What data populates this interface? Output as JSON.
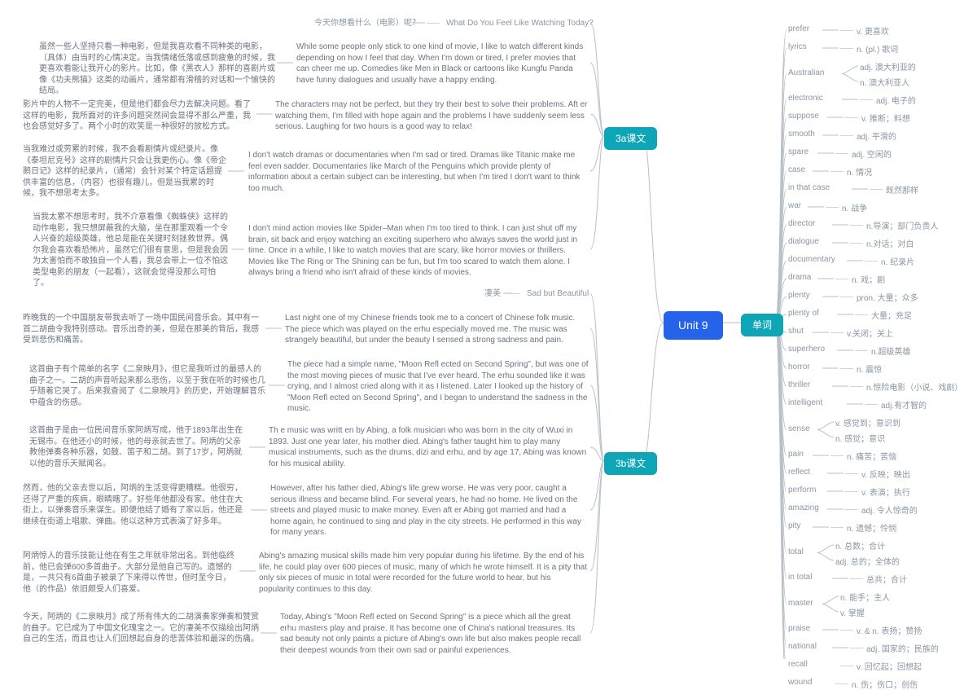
{
  "hub": "Unit 9",
  "sections": {
    "s3a": "3a课文",
    "s3b": "3b课文",
    "vocab": "单词"
  },
  "s3a_title_cn": "今天你想看什么（电影）呢？",
  "s3a_title_en": "What Do You Feel Like Watching Today?",
  "s3a_p1_cn": "虽然一些人坚持只看一种电影，但是我喜欢看不同种类的电影，（具体）由当时的心情决定。当我情绪低落或感到疲惫的时候，我更喜欢看能让我开心的影片。比如，像《黑衣人》那样的喜剧片或像《功夫熊猫》这类的动画片，通常都有滑稽的对话和一个愉快的结局。",
  "s3a_p1_en": "While some people only stick to one kind of movie, I like to watch different kinds depending on how I feel that day. When I'm down or tired, I prefer movies that can cheer me up. Comedies like Men in Black or cartoons like Kungfu Panda have funny dialogues and usually have a happy ending.",
  "s3a_p2_cn": "影片中的人物不一定完美，但是他们都会尽力去解决问题。看了这样的电影，我所面对的许多问题突然间会显得不那么严重，我也会感觉好多了。两个小时的欢笑是一种很好的放松方式。",
  "s3a_p2_en": "The characters may not be perfect, but they try their best to solve their problems. Aft er watching them, I'm filled with hope again and the problems I have suddenly seem less serious. Laughing for two hours is a good way to relax!",
  "s3a_p3_cn": "当我难过或劳累的时候，我不会看剧情片或纪录片。像《泰坦尼克号》这样的剧情片只会让我更伤心。像《帝企鹅日记》这样的纪录片，（通常）会针对某个特定话题提供丰富的信息，（内容）也很有趣儿，但是当我累的时候，我不想思考太多。",
  "s3a_p3_en": "I don't watch dramas or documentaries when I'm sad or tired. Dramas like Titanic make me feel even sadder. Documentaries like March of the Penguins which provide plenty of information about a certain subject can be interesting, but when I'm tired I don't want to think too much.",
  "s3a_p4_cn": "当我太累不想思考时，我不介意看像《蜘蛛侠》这样的动作电影，我只想屏蔽我的大脑，坐在那里观看一个令人兴奋的超级英雄，他总是能在关键时刻拯救世界。偶尔我会喜欢看恐怖片，虽然它们很有意思，但是我会因为太害怕而不敢独自一个人看，我总会带上一位不怕这类型电影的朋友（一起看），这就会觉得没那么可怕了。",
  "s3a_p4_en": "I don't mind action movies like Spider–Man when I'm too tired to think. I can just shut off my brain, sit back and enjoy watching an exciting superhero who always saves the world just in time. Once in a while, I like to watch movies that are scary, like horror movies or thrillers. Movies like The Ring or The Shining can be fun, but I'm too scared to watch them alone. I always bring a friend who isn't afraid of these kinds of movies.",
  "s3b_title_cn": "凄美",
  "s3b_title_en": "Sad but Beautiful",
  "s3b_p1_cn": "昨晚我的一个中国朋友带我去听了一场中国民间音乐会。其中有一首二胡曲令我特别感动。音乐出奇的美，但是在那美的背后，我感受到悲伤和痛苦。",
  "s3b_p1_en": "Last night one of my Chinese friends took me to a concert of Chinese folk music. The piece which was played on the erhu especially moved me. The music was strangely beautiful, but under the beauty I sensed a strong sadness and pain.",
  "s3b_p2_cn": "这首曲子有个简单的名字《二泉映月》，但它是我听过的最感人的曲子之一。二胡的声音听起来那么悲伤，以至于我在听的时候也几乎随着它哭了。后来我查阅了《二泉映月》的历史，开始理解音乐中蕴含的伤感。",
  "s3b_p2_en": "The piece had a simple name, \"Moon Refl ected on Second Spring\", but was one of the most moving pieces of music that I've ever heard. The erhu sounded like it was crying, and I almost cried along with it as I listened. Later I looked up the history of \"Moon Refl ected on Second Spring\", and I began to understand the sadness in the music.",
  "s3b_p3_cn": "这首曲子是由一位民间音乐家阿炳写成，他于1893年出生在无锡市。在他还小的时候，他的母亲就去世了。阿炳的父亲教他弹奏各种乐器，如鼓、笛子和二胡。到了17岁，阿炳就以他的音乐天赋闻名。",
  "s3b_p3_en": "Th e music was writt en by Abing, a folk musician who was born in the city of Wuxi in 1893. Just one year later, his mother died. Abing's father taught him to play many musical instruments, such as the drums, dizi and erhu, and by age 17, Abing was known for his musical ability.",
  "s3b_p4_cn": "然而，他的父亲去世以后，阿炳的生活变得更糟糕。他很穷，还得了严重的疾病，眼睛瞎了。好些年他都没有家。他住在大街上，以弹奏音乐来谋生。即便他结了婚有了家以后，他还是继续在街道上唱歌、弹曲。他以这种方式表演了好多年。",
  "s3b_p4_en": "However, after his father died, Abing's life grew worse. He was very poor, caught a serious illness and became blind. For several years, he had no home. He lived on the streets and played music to make money. Even aft er Abing got married and had a home again, he continued to sing and play in the city streets. He performed in this way for many years.",
  "s3b_p5_cn": "阿炳惊人的音乐技能让他在有生之年就非常出名。到他临终前，他已会弹600多首曲子。大部分是他自己写的。遗憾的是，一共只有6首曲子被录了下来得以传世，但时至今日，他（的作品）依旧颇受人们喜爱。",
  "s3b_p5_en": "Abing's amazing musical skills made him very popular during his lifetime. By the end of his life, he could play over 600 pieces of music, many of which he wrote himself. It is a pity that only six pieces of music in total were recorded for the future world to hear, but his popularity continues to this day.",
  "s3b_p6_cn": "今天，阿炳的《二泉映月》成了所有伟大的二胡演奏家弹奏和赞赏的曲子。它已成为了中国文化瑰宝之一。它的凄美不仅描绘出阿炳自己的生活，而且也让人们回想起自身的悲苦体验和最深的伤痛。",
  "s3b_p6_en": "Today, Abing's \"Moon Refl ected on Second Spring\" is a piece which all the great erhu masters play and praise. It has become one of China's national treasures. Its sad beauty not only paints a picture of Abing's own life but also makes people recall their deepest wounds from their own sad or painful experiences.",
  "vocab": [
    {
      "w": "prefer",
      "d": [
        "v. 更喜欢"
      ]
    },
    {
      "w": "lyrics",
      "d": [
        "n. (pl.) 歌词"
      ]
    },
    {
      "w": "Australian",
      "d": [
        "adj. 澳大利亚的",
        "n. 澳大利亚人"
      ]
    },
    {
      "w": "electronic",
      "d": [
        "adj. 电子的"
      ]
    },
    {
      "w": "suppose",
      "d": [
        "v. 推断；料想"
      ]
    },
    {
      "w": "smooth",
      "d": [
        "adj. 平滑的"
      ]
    },
    {
      "w": "spare",
      "d": [
        "adj. 空闲的"
      ]
    },
    {
      "w": "case",
      "d": [
        "n. 情况"
      ]
    },
    {
      "w": "in that case",
      "d": [
        "既然那样"
      ]
    },
    {
      "w": "war",
      "d": [
        "n. 战争"
      ]
    },
    {
      "w": "director",
      "d": [
        "n.导演；部门负责人"
      ]
    },
    {
      "w": "dialogue",
      "d": [
        "n.对话；对白"
      ]
    },
    {
      "w": "documentary",
      "d": [
        "n. 纪录片"
      ]
    },
    {
      "w": "drama",
      "d": [
        "n. 戏；剧"
      ]
    },
    {
      "w": "plenty",
      "d": [
        "pron. 大量；众多"
      ]
    },
    {
      "w": "plenty of",
      "d": [
        "大量；充足"
      ]
    },
    {
      "w": "shut",
      "d": [
        "v.关闭；关上"
      ]
    },
    {
      "w": "superhero",
      "d": [
        "n.超级英雄"
      ]
    },
    {
      "w": "horror",
      "d": [
        "n. 震惊"
      ]
    },
    {
      "w": "thriller",
      "d": [
        "n.惊险电影（小说、戏剧）"
      ]
    },
    {
      "w": "intelligent",
      "d": [
        "adj.有才智的"
      ]
    },
    {
      "w": "sense",
      "d": [
        "v. 感觉到；意识到",
        "n. 感觉；意识"
      ]
    },
    {
      "w": "pain",
      "d": [
        "n. 痛苦；苦恼"
      ]
    },
    {
      "w": "reflect",
      "d": [
        "v. 反映；映出"
      ]
    },
    {
      "w": "perform",
      "d": [
        "v. 表演；执行"
      ]
    },
    {
      "w": "amazing",
      "d": [
        "adj. 令人惊奇的"
      ]
    },
    {
      "w": "pity",
      "d": [
        "n. 遗憾；怜悯"
      ]
    },
    {
      "w": "total",
      "d": [
        "n. 总数；合计",
        "adj. 总的；全体的"
      ]
    },
    {
      "w": "in total",
      "d": [
        "总共；合计"
      ]
    },
    {
      "w": "master",
      "d": [
        "n. 能手；主人",
        "v. 掌握"
      ]
    },
    {
      "w": "praise",
      "d": [
        "v. & n. 表扬；赞扬"
      ]
    },
    {
      "w": "national",
      "d": [
        "adj. 国家的；民族的"
      ]
    },
    {
      "w": "recall",
      "d": [
        "v. 回忆起；回想起"
      ]
    },
    {
      "w": "wound",
      "d": [
        "n. 伤；伤口；创伤"
      ]
    }
  ],
  "colors": {
    "hub": "#2563eb",
    "section": "#0ea5b7",
    "line": "#b8c0c8",
    "text": "#6b7280"
  }
}
